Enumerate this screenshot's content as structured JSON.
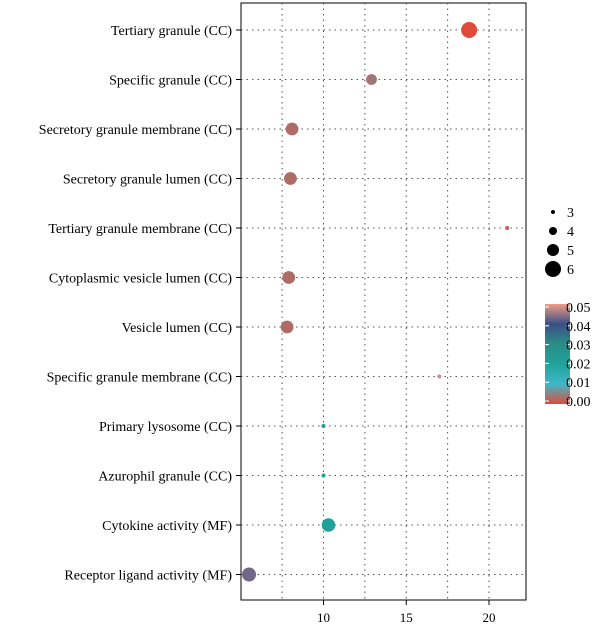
{
  "chart_data": {
    "type": "scatter",
    "title": "",
    "xlabel": "",
    "ylabel": "",
    "xlim": [
      4.5,
      22
    ],
    "xticks": [
      10,
      15,
      20
    ],
    "categories": [
      "Tertiary granule (CC)",
      "Specific granule (CC)",
      "Secretory granule membrane (CC)",
      "Secretory granule lumen (CC)",
      "Tertiary granule membrane (CC)",
      "Cytoplasmic vesicle lumen (CC)",
      "Vesicle lumen (CC)",
      "Specific granule membrane (CC)",
      "Primary lysosome (CC)",
      "Azurophil granule (CC)",
      "Cytokine activity (MF)",
      "Receptor ligand activity (MF)"
    ],
    "points": [
      {
        "category": "Tertiary granule (CC)",
        "x": 18.8,
        "size": 6.0,
        "color_value": 0.0
      },
      {
        "category": "Specific granule (CC)",
        "x": 12.9,
        "size": 4.7,
        "color_value": 0.004
      },
      {
        "category": "Secretory granule membrane (CC)",
        "x": 8.1,
        "size": 5.2,
        "color_value": 0.003
      },
      {
        "category": "Secretory granule lumen (CC)",
        "x": 8.0,
        "size": 5.2,
        "color_value": 0.003
      },
      {
        "category": "Tertiary granule membrane (CC)",
        "x": 21.1,
        "size": 3.0,
        "color_value": 0.002
      },
      {
        "category": "Cytoplasmic vesicle lumen (CC)",
        "x": 7.9,
        "size": 5.2,
        "color_value": 0.003
      },
      {
        "category": "Vesicle lumen (CC)",
        "x": 7.8,
        "size": 5.2,
        "color_value": 0.003
      },
      {
        "category": "Specific granule membrane (CC)",
        "x": 17.0,
        "size": 3.0,
        "color_value": 0.048
      },
      {
        "category": "Primary lysosome (CC)",
        "x": 10.0,
        "size": 3.0,
        "color_value": 0.024
      },
      {
        "category": "Azurophil granule (CC)",
        "x": 10.0,
        "size": 3.0,
        "color_value": 0.024
      },
      {
        "category": "Cytokine activity (MF)",
        "x": 10.3,
        "size": 5.4,
        "color_value": 0.021
      },
      {
        "category": "Receptor ligand activity (MF)",
        "x": 5.5,
        "size": 5.5,
        "color_value": 0.043
      }
    ],
    "size_legend": {
      "values": [
        3,
        4,
        5,
        6
      ],
      "labels": [
        "3",
        "4",
        "5",
        "6"
      ]
    },
    "color_legend": {
      "range": [
        0.0,
        0.05
      ],
      "stops": [
        {
          "value": 0.0,
          "color": "#e04a3a"
        },
        {
          "value": 0.01,
          "color": "#3eb8c9"
        },
        {
          "value": 0.02,
          "color": "#1fa39a"
        },
        {
          "value": 0.03,
          "color": "#2a8d86"
        },
        {
          "value": 0.04,
          "color": "#3c4f86"
        },
        {
          "value": 0.05,
          "color": "#ee9e86"
        }
      ],
      "labels": [
        "0.05",
        "0.04",
        "0.03",
        "0.02",
        "0.01",
        "0.00"
      ]
    },
    "grid": true,
    "legend_position": "right"
  }
}
